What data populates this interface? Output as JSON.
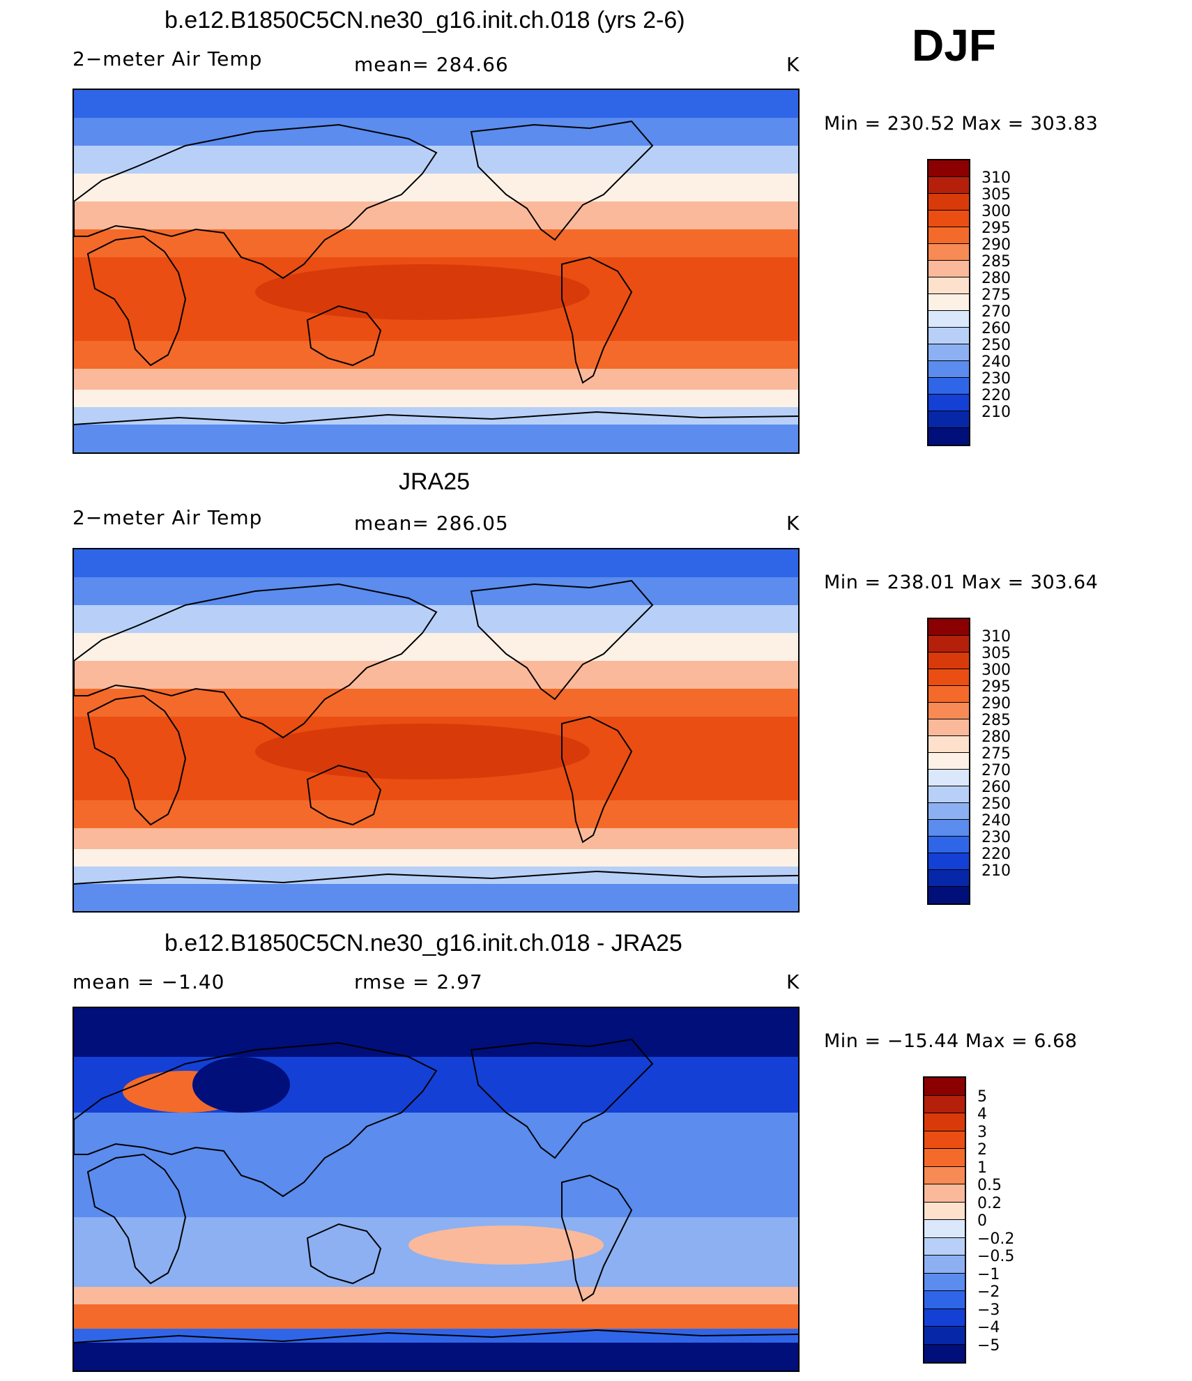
{
  "season": "DJF",
  "panels": [
    {
      "title": "b.e12.B1850C5CN.ne30_g16.init.ch.018 (yrs 2-6)",
      "variable": "2−meter Air Temp",
      "left_stat": "",
      "mean_text": "mean=  284.66",
      "units": "K",
      "minmax": "Min  =  230.52  Max  =  303.83",
      "kind": "abs"
    },
    {
      "title": "JRA25",
      "variable": "2−meter Air Temp",
      "left_stat": "",
      "mean_text": "mean=  286.05",
      "units": "K",
      "minmax": "Min  =  238.01  Max  =  303.64",
      "kind": "abs"
    },
    {
      "title": "b.e12.B1850C5CN.ne30_g16.init.ch.018 - JRA25",
      "variable": "mean  =    −1.40",
      "left_stat": "",
      "mean_text": "rmse  =      2.97",
      "units": "K",
      "minmax": "Min  =  −15.44  Max  =      6.68",
      "kind": "diff"
    }
  ],
  "colorbars": {
    "abs": {
      "labels": [
        "310",
        "305",
        "300",
        "295",
        "290",
        "285",
        "280",
        "275",
        "270",
        "260",
        "250",
        "240",
        "230",
        "220",
        "210"
      ],
      "colors": [
        "#8b0000",
        "#b5200a",
        "#d93a0a",
        "#ea4e12",
        "#f46a2a",
        "#f78a55",
        "#fab99a",
        "#fde1cc",
        "#fdf1e6",
        "#dbe8fb",
        "#b8d0f7",
        "#8cb0f2",
        "#5b8cee",
        "#2f66e8",
        "#1440d6",
        "#0628a8",
        "#000f7a"
      ]
    },
    "diff": {
      "labels": [
        "5",
        "4",
        "3",
        "2",
        "1",
        "0.5",
        "0.2",
        "0",
        "−0.2",
        "−0.5",
        "−1",
        "−2",
        "−3",
        "−4",
        "−5"
      ],
      "colors": [
        "#8b0000",
        "#b5200a",
        "#d93a0a",
        "#ea4e12",
        "#f46a2a",
        "#f78a55",
        "#fab99a",
        "#fde1cc",
        "#dbe8fb",
        "#b8d0f7",
        "#8cb0f2",
        "#5b8cee",
        "#2f66e8",
        "#1440d6",
        "#0628a8",
        "#000f7a"
      ]
    }
  }
}
